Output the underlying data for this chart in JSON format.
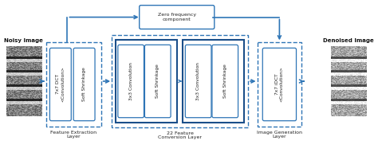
{
  "bg_color": "#ffffff",
  "blue_dark": "#1b4f8a",
  "blue_mid": "#2e75b6",
  "blue_arrow": "#2e75b6",
  "text_color": "#222222",
  "noisy_label": "Noisy Image",
  "denoised_label": "Denoised Image",
  "layer1_label": "Feature Extraction\nLayer",
  "layer2_label": "22 Feature\nConversion Layer",
  "layer3_label": "Image Generation\nLayer",
  "zero_freq_label": "Zero frequency\ncomponent",
  "box1_texts": [
    "7x7 DCT\n<Convolution>",
    "Soft Shrinkage"
  ],
  "box2a_texts": [
    "3x3 Convolution",
    "Soft Shrinkage"
  ],
  "box2b_texts": [
    "3x3 Convolution",
    "Soft Shrinkage"
  ],
  "box3_texts": [
    "7x7 iDCT\n<Convolution>"
  ],
  "figsize": [
    4.74,
    2.11
  ],
  "dpi": 100
}
